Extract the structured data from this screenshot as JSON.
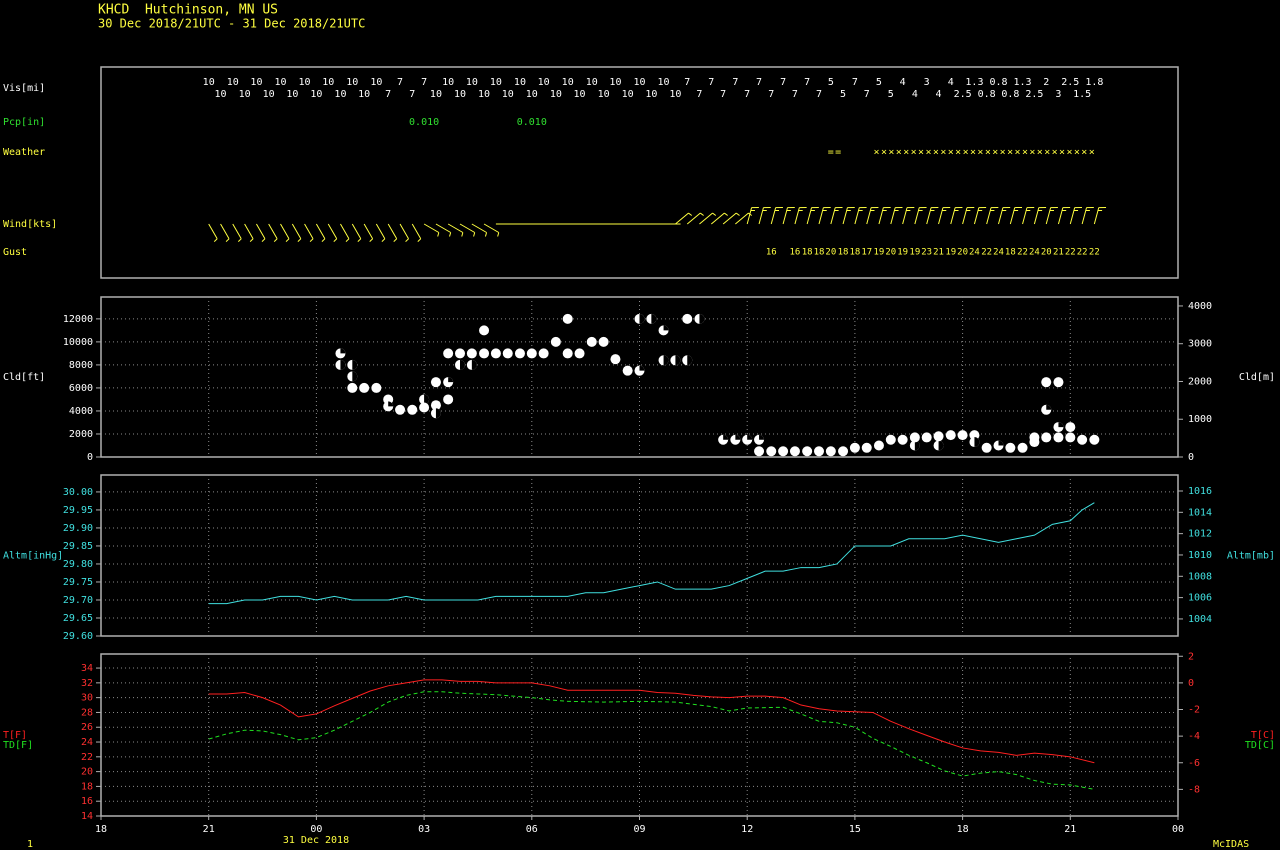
{
  "header": {
    "station": "KHCD  Hutchinson, MN US",
    "period": "30 Dec 2018/21UTC - 31 Dec 2018/21UTC"
  },
  "footer": {
    "date": "31 Dec 2018",
    "page": "1",
    "brand": "McIDAS"
  },
  "chart_data": [
    {
      "type": "surface",
      "xlim": [
        18,
        48
      ],
      "visibility": {
        "label": "Vis[mi]",
        "color": "#ffffff",
        "x": [
          21,
          21.33,
          21.67,
          22,
          22.33,
          22.67,
          23,
          23.33,
          23.67,
          24,
          24.33,
          24.67,
          25,
          25.33,
          25.67,
          26,
          26.33,
          26.67,
          27,
          27.33,
          27.67,
          28,
          28.33,
          28.67,
          29,
          29.33,
          29.67,
          30,
          30.33,
          30.67,
          31,
          31.33,
          31.67,
          32,
          32.33,
          32.67,
          33,
          33.33,
          33.67,
          34,
          34.33,
          34.67,
          35,
          35.33,
          35.67,
          36,
          36.33,
          36.67,
          37,
          37.33,
          37.67,
          38,
          38.33,
          38.67,
          39,
          39.33,
          39.67,
          40,
          40.33,
          40.67,
          41,
          41.33,
          41.67,
          42,
          42.33,
          42.67,
          43,
          43.33,
          43.67,
          44,
          44.33,
          44.67,
          45,
          45.33,
          45.67
        ],
        "values": [
          10,
          10,
          10,
          10,
          10,
          10,
          10,
          10,
          10,
          10,
          10,
          10,
          10,
          10,
          10,
          7,
          7,
          7,
          7,
          10,
          10,
          10,
          10,
          10,
          10,
          10,
          10,
          10,
          10,
          10,
          10,
          10,
          10,
          10,
          10,
          10,
          10,
          10,
          10,
          10,
          7,
          7,
          7,
          7,
          7,
          7,
          7,
          7,
          7,
          7,
          7,
          7,
          5,
          5,
          7,
          7,
          5,
          5,
          4,
          4,
          3,
          4,
          4,
          2.5,
          1.3,
          0.8,
          0.8,
          0.8,
          1.3,
          2.5,
          2,
          3,
          2.5,
          1.5,
          1.8
        ]
      },
      "precipitation": {
        "label": "Pcp[in]",
        "color": "#30e030",
        "x": [
          27,
          30
        ],
        "values": [
          0.01,
          0.01
        ],
        "value_labels": [
          "0.010",
          "0.010"
        ]
      },
      "weather": {
        "label": "Weather",
        "color": "#ffff40",
        "x": [
          38.45,
          42.62
        ],
        "values": [
          "==",
          "××××××××××××××××××××××××××××××"
        ]
      },
      "wind": {
        "label": "Wind[kts]",
        "color": "#ffff40",
        "x": [
          21,
          21.33,
          21.67,
          22,
          22.33,
          22.67,
          23,
          23.33,
          23.67,
          24,
          24.33,
          24.67,
          25,
          25.33,
          25.67,
          26,
          26.33,
          26.67,
          27,
          27.33,
          27.67,
          28,
          28.33,
          28.67,
          29,
          29.33,
          29.67,
          30,
          30.33,
          30.67,
          31,
          31.33,
          31.67,
          32,
          32.33,
          32.67,
          33,
          33.33,
          33.67,
          34,
          34.33,
          34.67,
          35,
          35.33,
          35.67,
          36,
          36.33,
          36.67,
          37,
          37.33,
          37.67,
          38,
          38.33,
          38.67,
          39,
          39.33,
          39.67,
          40,
          40.33,
          40.67,
          41,
          41.33,
          41.67,
          42,
          42.33,
          42.67,
          43,
          43.33,
          43.67,
          44,
          44.33,
          44.67,
          45,
          45.33,
          45.67
        ],
        "direction": [
          330,
          330,
          330,
          330,
          330,
          330,
          330,
          330,
          330,
          330,
          330,
          330,
          330,
          330,
          330,
          330,
          330,
          330,
          300,
          300,
          300,
          300,
          300,
          300,
          270,
          270,
          270,
          270,
          270,
          270,
          270,
          270,
          270,
          270,
          270,
          270,
          270,
          270,
          270,
          230,
          230,
          230,
          230,
          230,
          230,
          195,
          195,
          195,
          195,
          195,
          195,
          195,
          195,
          195,
          195,
          195,
          195,
          195,
          195,
          195,
          195,
          195,
          195,
          195,
          195,
          195,
          195,
          195,
          195,
          195,
          195,
          195,
          195,
          195,
          195
        ],
        "speed": [
          9,
          9,
          9,
          9,
          9,
          9,
          9,
          9,
          9,
          9,
          9,
          9,
          9,
          9,
          9,
          9,
          9,
          9,
          6,
          6,
          6,
          6,
          6,
          6,
          3,
          3,
          3,
          3,
          3,
          3,
          3,
          3,
          3,
          3,
          3,
          3,
          3,
          3,
          3,
          7,
          7,
          7,
          7,
          7,
          7,
          15,
          15,
          15,
          15,
          15,
          15,
          15,
          15,
          15,
          15,
          15,
          15,
          15,
          15,
          15,
          15,
          15,
          15,
          15,
          15,
          15,
          15,
          15,
          15,
          15,
          15,
          15,
          15,
          15,
          15
        ]
      },
      "gust": {
        "label": "Gust",
        "color": "#ffff40",
        "x": [
          36.67,
          37.33,
          37.67,
          38,
          38.33,
          38.67,
          39,
          39.33,
          39.67,
          40,
          40.33,
          40.67,
          41,
          41.33,
          41.67,
          42,
          42.33,
          42.67,
          43,
          43.33,
          43.67,
          44,
          44.33,
          44.67,
          45,
          45.33,
          45.67
        ],
        "values": [
          16,
          16,
          18,
          18,
          20,
          18,
          18,
          17,
          19,
          20,
          19,
          19,
          23,
          21,
          19,
          20,
          24,
          22,
          24,
          18,
          22,
          24,
          20,
          21,
          22,
          22,
          22
        ]
      }
    },
    {
      "type": "scatter",
      "ylabel": "Cld[ft]",
      "y2label": "Cld[m]",
      "color": "#ffffff",
      "tick_color": "#ffffff",
      "grid": true,
      "xlim": [
        18,
        48
      ],
      "xticks": [
        18,
        21,
        24,
        27,
        30,
        33,
        36,
        39,
        42,
        45,
        48
      ],
      "ylim": [
        0,
        13900
      ],
      "yticks": [
        0,
        2000,
        4000,
        6000,
        8000,
        10000,
        12000
      ],
      "y2lim": [
        0,
        4237
      ],
      "y2ticks": [
        0,
        1000,
        2000,
        3000,
        4000
      ],
      "x": [
        24.67,
        24.67,
        25,
        25,
        25,
        25.33,
        25.67,
        26,
        26,
        26.33,
        26.67,
        27,
        27,
        27.33,
        27.33,
        27.33,
        27.67,
        27.67,
        27.67,
        28,
        28,
        28.33,
        28.33,
        28.67,
        28.67,
        29,
        29.33,
        29.67,
        30,
        30.33,
        30.67,
        31,
        31,
        31.33,
        31.67,
        32,
        32.33,
        32.67,
        33,
        33,
        33.33,
        33.67,
        33.67,
        34,
        34.33,
        34.33,
        34.67,
        35.33,
        35.67,
        36,
        36.33,
        36.33,
        36.67,
        37,
        37.33,
        37.67,
        38,
        38.33,
        38.67,
        39,
        39.33,
        39.67,
        40,
        40.33,
        40.67,
        40.67,
        41,
        41.33,
        41.33,
        41.67,
        42,
        42.33,
        42.33,
        42.67,
        43,
        43.33,
        43.67,
        44,
        44,
        44.33,
        44.33,
        44.33,
        44.67,
        44.67,
        44.67,
        45,
        45,
        45.33,
        45.67
      ],
      "values": [
        9000,
        8000,
        8000,
        7000,
        6000,
        6000,
        6000,
        5000,
        4400,
        4100,
        4100,
        5000,
        4300,
        6500,
        4500,
        3800,
        6500,
        5000,
        9000,
        9000,
        8000,
        9000,
        8000,
        11000,
        9000,
        9000,
        9000,
        9000,
        9000,
        9000,
        10000,
        12000,
        9000,
        9000,
        10000,
        10000,
        8500,
        7500,
        7500,
        12000,
        12000,
        11000,
        8400,
        8400,
        8400,
        12000,
        12000,
        1500,
        1500,
        1500,
        1500,
        500,
        500,
        500,
        500,
        500,
        500,
        500,
        500,
        800,
        800,
        1000,
        1500,
        1500,
        1000,
        1700,
        1700,
        1000,
        1800,
        1900,
        1900,
        1900,
        1300,
        800,
        1000,
        800,
        800,
        1300,
        1700,
        4100,
        6500,
        1700,
        6500,
        1700,
        2600,
        2600,
        1700,
        1500,
        1500
      ],
      "cover": [
        0.75,
        0.5,
        0.5,
        0.5,
        1,
        1,
        1,
        1,
        0.75,
        1,
        1,
        0.5,
        1,
        1,
        1,
        0.5,
        0.75,
        1,
        1,
        1,
        0.5,
        1,
        0.5,
        1,
        1,
        1,
        1,
        1,
        1,
        1,
        1,
        1,
        1,
        1,
        1,
        1,
        1,
        1,
        0.75,
        0.5,
        0.5,
        0.75,
        0.5,
        0.5,
        0.5,
        1,
        0.5,
        0.75,
        0.75,
        0.75,
        0.75,
        1,
        1,
        1,
        1,
        1,
        1,
        1,
        1,
        1,
        1,
        1,
        1,
        1,
        0.5,
        1,
        1,
        0.5,
        1,
        1,
        1,
        1,
        0.5,
        1,
        0.75,
        1,
        1,
        1,
        1,
        0.75,
        1,
        1,
        1,
        1,
        0.75,
        1,
        1,
        1,
        1
      ]
    },
    {
      "type": "line",
      "ylabel": "Altm[inHg]",
      "y2label": "Altm[mb]",
      "tick_color": "#40e0e0",
      "grid": true,
      "xlim": [
        18,
        48
      ],
      "xticks": [
        18,
        21,
        24,
        27,
        30,
        33,
        36,
        39,
        42,
        45,
        48
      ],
      "ylim": [
        29.6,
        30.047
      ],
      "yticks": [
        {
          "value": 29.6,
          "label": "29.60"
        },
        29.65,
        {
          "value": 29.7,
          "label": "29.70"
        },
        29.75,
        {
          "value": 29.8,
          "label": "29.80"
        },
        29.85,
        {
          "value": 29.9,
          "label": "29.90"
        },
        29.95,
        {
          "value": 30,
          "label": "30.00"
        }
      ],
      "y2lim": [
        1002.4,
        1017.5
      ],
      "y2ticks": [
        1004,
        1006,
        1008,
        1010,
        1012,
        1014,
        1016
      ],
      "series": [
        {
          "color": "#40e0e0",
          "x": [
            21,
            21.5,
            22,
            22.5,
            23,
            23.5,
            24,
            24.5,
            25,
            25.5,
            26,
            26.5,
            27,
            28,
            28.5,
            29,
            30,
            31,
            31.5,
            32,
            32.5,
            33,
            33.5,
            34,
            34.5,
            35,
            35.5,
            36,
            36.5,
            37,
            37.5,
            38,
            38.5,
            39,
            39.5,
            40,
            40.5,
            41,
            41.5,
            42,
            42.5,
            43,
            43.5,
            44,
            44.5,
            45,
            45.33,
            45.67
          ],
          "values": [
            29.69,
            29.69,
            29.7,
            29.7,
            29.71,
            29.71,
            29.7,
            29.71,
            29.7,
            29.7,
            29.7,
            29.71,
            29.7,
            29.7,
            29.7,
            29.71,
            29.71,
            29.71,
            29.72,
            29.72,
            29.73,
            29.74,
            29.75,
            29.73,
            29.73,
            29.73,
            29.74,
            29.76,
            29.78,
            29.78,
            29.79,
            29.79,
            29.8,
            29.85,
            29.85,
            29.85,
            29.87,
            29.87,
            29.87,
            29.88,
            29.87,
            29.86,
            29.87,
            29.88,
            29.91,
            29.92,
            29.95,
            29.97
          ]
        }
      ]
    },
    {
      "type": "line",
      "y2labels": [
        "T[C]",
        "TD[C]"
      ],
      "tick_color": "#ff3030",
      "grid": true,
      "xlim": [
        18,
        48
      ],
      "xticks": [
        18,
        21,
        {
          "value": 24,
          "label": "00"
        },
        {
          "value": 27,
          "label": "03"
        },
        {
          "value": 30,
          "label": "06"
        },
        {
          "value": 33,
          "label": "09"
        },
        {
          "value": 36,
          "label": "12"
        },
        {
          "value": 39,
          "label": "15"
        },
        {
          "value": 42,
          "label": "18"
        },
        {
          "value": 45,
          "label": "21"
        },
        {
          "value": 48,
          "label": "00"
        }
      ],
      "ylim": [
        14,
        35.9
      ],
      "yticks": [
        14,
        16,
        18,
        20,
        22,
        24,
        26,
        28,
        30,
        32,
        34
      ],
      "y2lim": [
        -10,
        2.17
      ],
      "y2ticks": [
        2,
        0,
        -2,
        -4,
        -6,
        -8
      ],
      "series": [
        {
          "name": "T[F]",
          "color": "#ff2020",
          "x": [
            21,
            21.5,
            22,
            22.5,
            23,
            23.5,
            24,
            24.5,
            25,
            25.5,
            26,
            26.5,
            27,
            27.5,
            28,
            28.5,
            29,
            29.5,
            30,
            30.5,
            31,
            32,
            33,
            33.5,
            34,
            34.5,
            35,
            35.5,
            36,
            36.5,
            37,
            37.5,
            38,
            38.5,
            39,
            39.5,
            40,
            40.5,
            41,
            41.5,
            42,
            42.5,
            43,
            43.5,
            44,
            44.5,
            45,
            45.67
          ],
          "values": [
            30.5,
            30.5,
            30.7,
            30,
            29,
            27.4,
            27.8,
            28.9,
            29.9,
            30.9,
            31.6,
            32,
            32.4,
            32.4,
            32.2,
            32.2,
            32,
            32,
            32,
            31.6,
            31,
            31,
            31,
            30.7,
            30.6,
            30.3,
            30.1,
            30,
            30.2,
            30.2,
            30,
            29,
            28.5,
            28.2,
            28.1,
            28,
            26.8,
            25.8,
            24.9,
            24,
            23.2,
            22.8,
            22.6,
            22.2,
            22.5,
            22.3,
            22,
            21.2
          ]
        },
        {
          "name": "TD[F]",
          "color": "#20e020",
          "dash": true,
          "x": [
            21,
            21.5,
            22,
            22.5,
            23,
            23.5,
            24,
            24.5,
            25,
            25.5,
            26,
            26.5,
            27,
            27.5,
            28,
            28.5,
            29,
            30,
            30.5,
            31,
            32,
            33,
            34,
            35,
            35.5,
            36,
            37,
            37.5,
            38,
            38.5,
            39,
            39.5,
            40,
            40.5,
            41,
            41.5,
            42,
            42.5,
            43,
            43.5,
            44,
            44.5,
            45,
            45.67
          ],
          "values": [
            24.4,
            25.1,
            25.6,
            25.5,
            25,
            24.3,
            24.6,
            25.6,
            26.8,
            28,
            29.4,
            30.3,
            30.8,
            30.8,
            30.6,
            30.5,
            30.4,
            30,
            29.7,
            29.5,
            29.4,
            29.5,
            29.4,
            28.8,
            28.2,
            28.6,
            28.7,
            27.8,
            26.8,
            26.6,
            26,
            24.5,
            23.4,
            22.2,
            21.2,
            20.1,
            19.4,
            19.8,
            20,
            19.6,
            18.8,
            18.3,
            18.2,
            17.6
          ]
        }
      ]
    }
  ]
}
